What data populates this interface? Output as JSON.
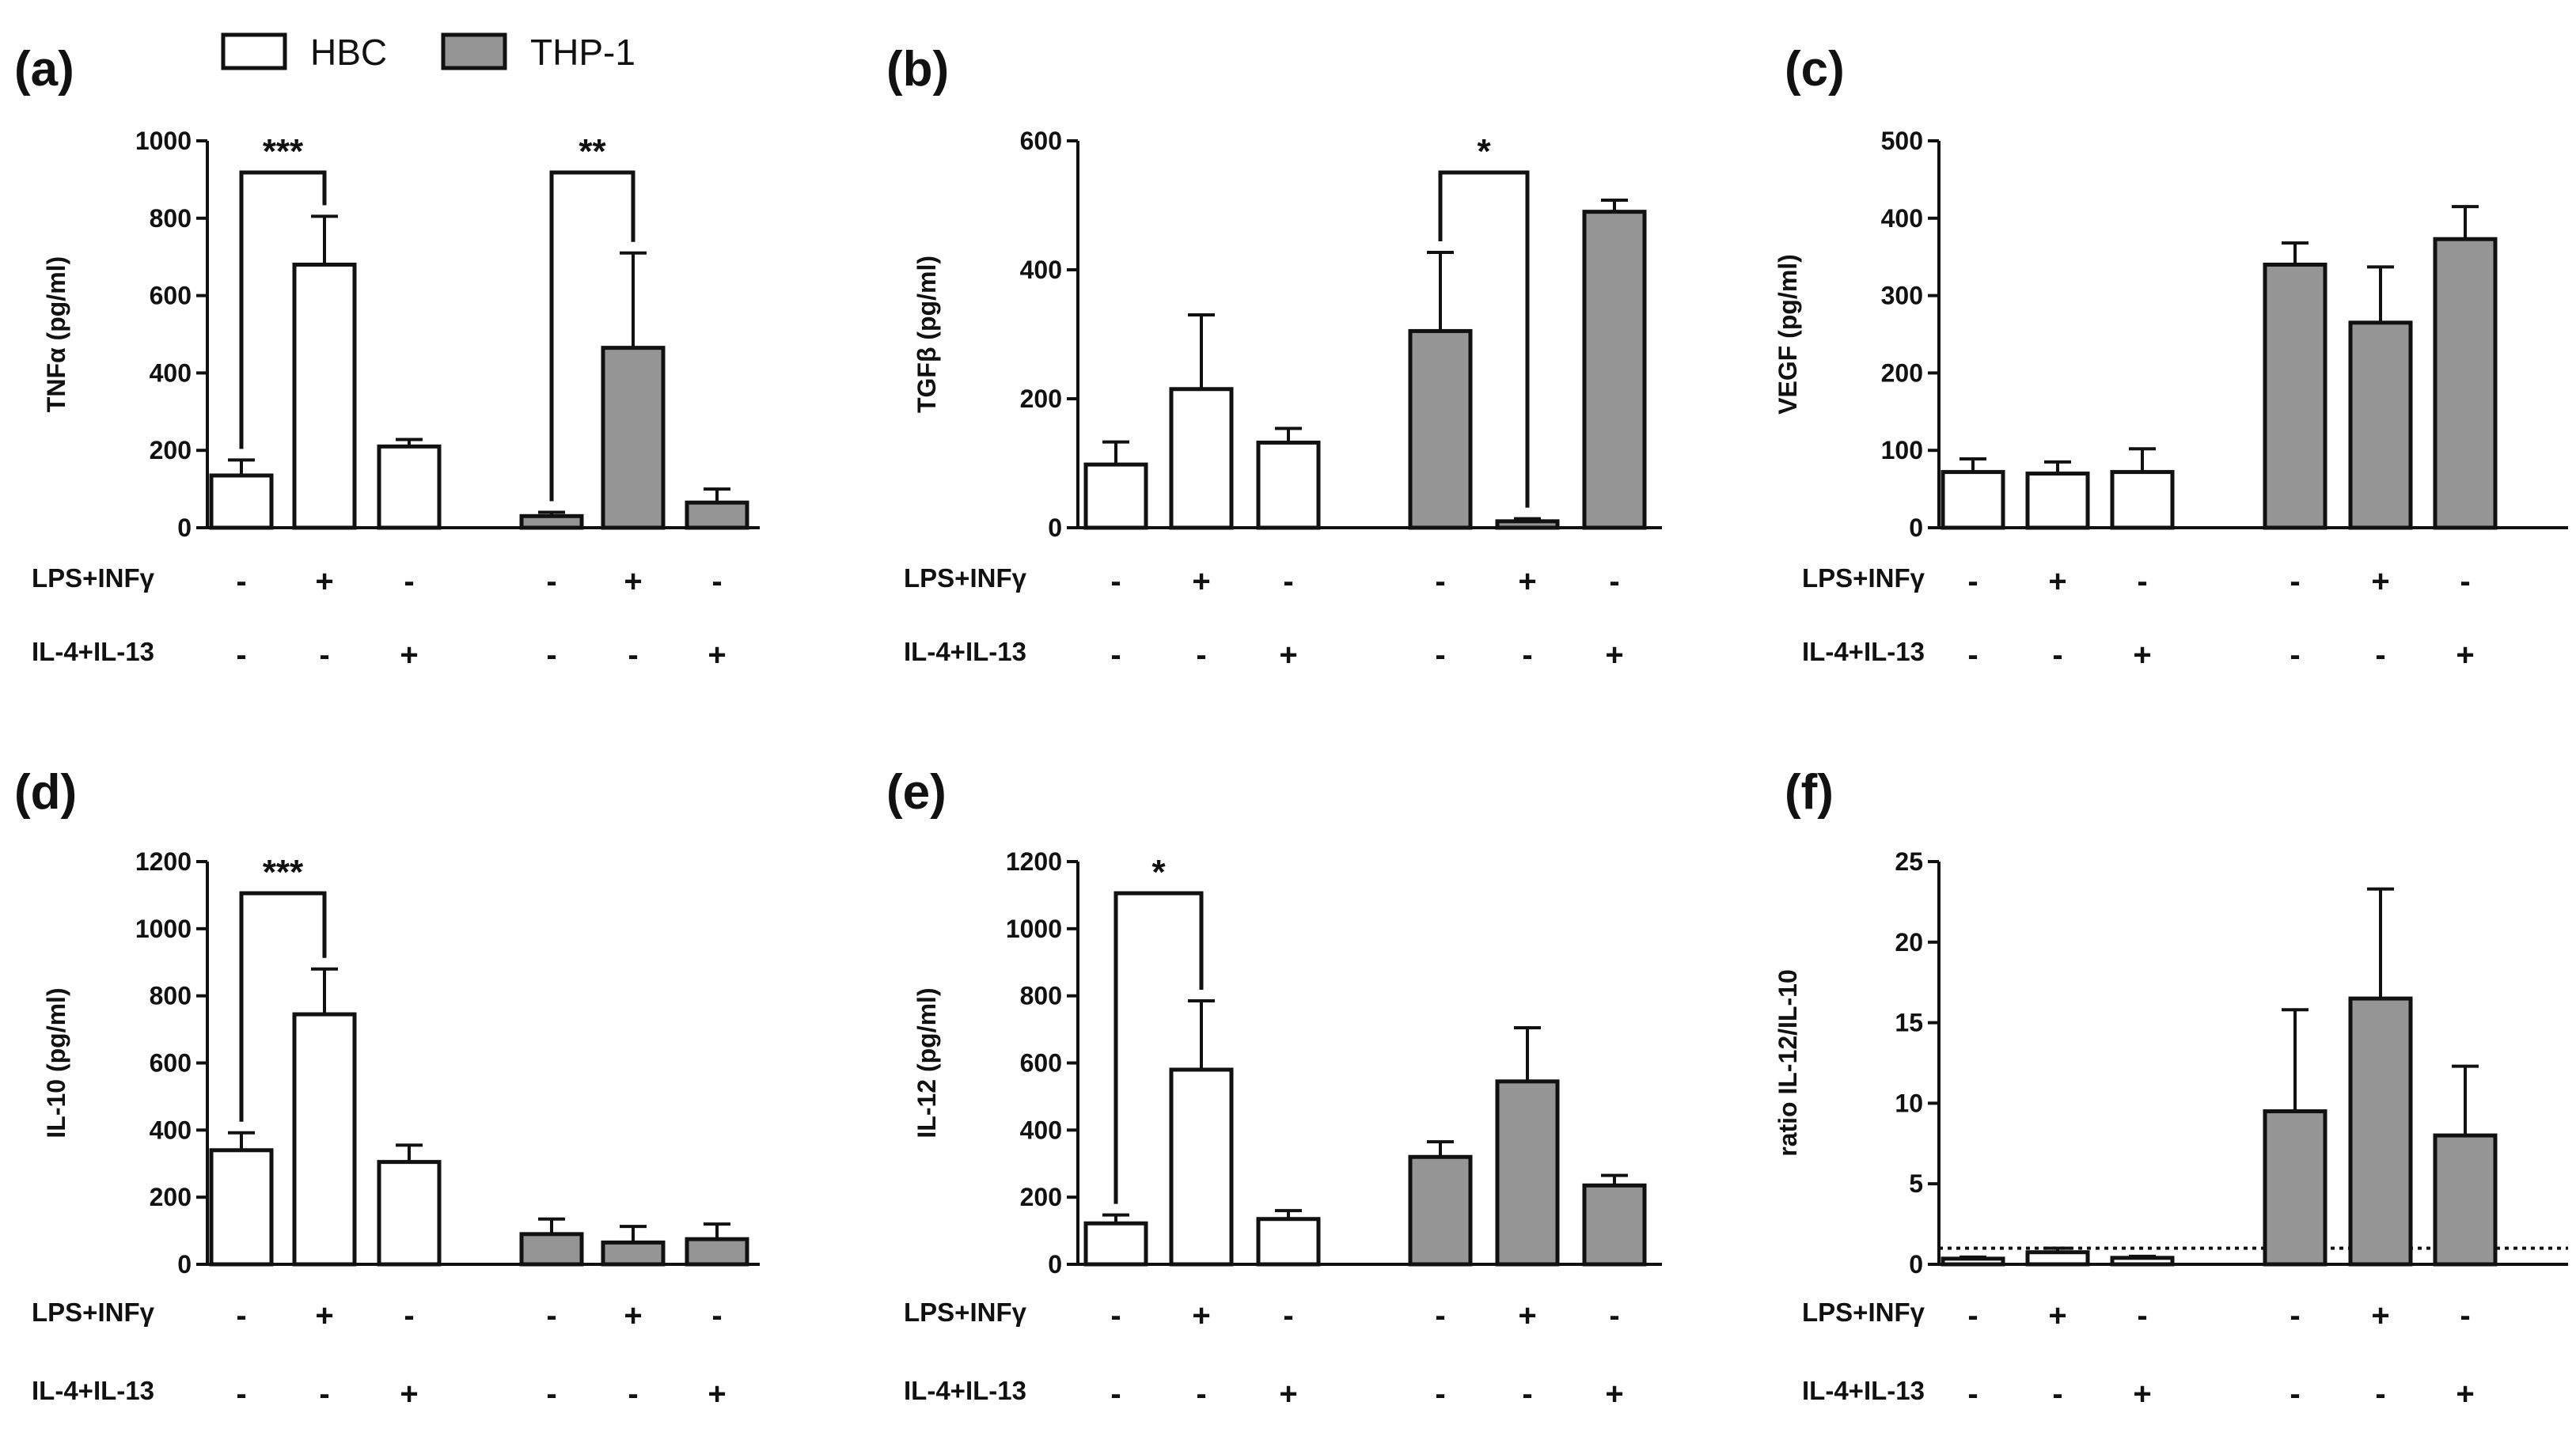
{
  "legend": [
    {
      "label": "HBC",
      "fill": "#ffffff"
    },
    {
      "label": "THP-1",
      "fill": "#959595"
    }
  ],
  "row_labels": [
    "LPS+INFγ",
    "IL-4+IL-13"
  ],
  "treatments": {
    "lps_inf": [
      "-",
      "+",
      "-",
      "-",
      "+",
      "-"
    ],
    "il4_il13": [
      "-",
      "-",
      "+",
      "-",
      "-",
      "+"
    ]
  },
  "colors": {
    "hbc_fill": "#ffffff",
    "thp1_fill": "#959595",
    "stroke": "#111111"
  },
  "chart_data": [
    {
      "panel": "(a)",
      "type": "bar",
      "ylabel": "TNFα (pg/ml)",
      "ylim": [
        0,
        1000
      ],
      "yticks": [
        "0",
        "200",
        "400",
        "600",
        "800",
        "1000"
      ],
      "series": [
        {
          "name": "HBC",
          "values": [
            135,
            680,
            210
          ],
          "errors": [
            40,
            125,
            18
          ]
        },
        {
          "name": "THP-1",
          "values": [
            30,
            465,
            65
          ],
          "errors": [
            10,
            245,
            35
          ]
        }
      ],
      "significance": [
        {
          "from": 0,
          "to": 1,
          "label": "***"
        },
        {
          "from": 3,
          "to": 4,
          "label": "**"
        }
      ],
      "reference_line": null
    },
    {
      "panel": "(b)",
      "type": "bar",
      "ylabel": "TGFβ (pg/ml)",
      "ylim": [
        0,
        600
      ],
      "yticks": [
        "0",
        "200",
        "400",
        "600"
      ],
      "series": [
        {
          "name": "HBC",
          "values": [
            98,
            215,
            132
          ],
          "errors": [
            35,
            115,
            22
          ]
        },
        {
          "name": "THP-1",
          "values": [
            305,
            10,
            490
          ],
          "errors": [
            122,
            4,
            18
          ]
        }
      ],
      "significance": [
        {
          "from": 3,
          "to": 4,
          "label": "*"
        }
      ],
      "reference_line": null
    },
    {
      "panel": "(c)",
      "type": "bar",
      "ylabel": "VEGF (pg/ml)",
      "ylim": [
        0,
        500
      ],
      "yticks": [
        "0",
        "100",
        "200",
        "300",
        "400",
        "500"
      ],
      "series": [
        {
          "name": "HBC",
          "values": [
            72,
            70,
            72
          ],
          "errors": [
            17,
            15,
            30
          ]
        },
        {
          "name": "THP-1",
          "values": [
            340,
            265,
            373
          ],
          "errors": [
            28,
            72,
            42
          ]
        }
      ],
      "significance": [],
      "reference_line": null
    },
    {
      "panel": "(d)",
      "type": "bar",
      "ylabel": "IL-10 (pg/ml)",
      "ylim": [
        0,
        1200
      ],
      "yticks": [
        "0",
        "200",
        "400",
        "600",
        "800",
        "1000",
        "1200"
      ],
      "series": [
        {
          "name": "HBC",
          "values": [
            340,
            745,
            305
          ],
          "errors": [
            52,
            135,
            50
          ]
        },
        {
          "name": "THP-1",
          "values": [
            90,
            65,
            75
          ],
          "errors": [
            45,
            48,
            45
          ]
        }
      ],
      "significance": [
        {
          "from": 0,
          "to": 1,
          "label": "***"
        }
      ],
      "reference_line": null
    },
    {
      "panel": "(e)",
      "type": "bar",
      "ylabel": "IL-12 (pg/ml)",
      "ylim": [
        0,
        1200
      ],
      "yticks": [
        "0",
        "200",
        "400",
        "600",
        "800",
        "1000",
        "1200"
      ],
      "series": [
        {
          "name": "HBC",
          "values": [
            122,
            580,
            135
          ],
          "errors": [
            25,
            205,
            25
          ]
        },
        {
          "name": "THP-1",
          "values": [
            320,
            545,
            235
          ],
          "errors": [
            45,
            160,
            30
          ]
        }
      ],
      "significance": [
        {
          "from": 0,
          "to": 1,
          "label": "*"
        }
      ],
      "reference_line": null
    },
    {
      "panel": "(f)",
      "type": "bar",
      "ylabel": "ratio IL-12/IL-10",
      "ylim": [
        0,
        25
      ],
      "yticks": [
        "0",
        "5",
        "10",
        "15",
        "20",
        "25"
      ],
      "series": [
        {
          "name": "HBC",
          "values": [
            0.35,
            0.75,
            0.4
          ],
          "errors": [
            0.1,
            0.25,
            0.1
          ]
        },
        {
          "name": "THP-1",
          "values": [
            9.5,
            16.5,
            8.0
          ],
          "errors": [
            6.3,
            6.8,
            4.3
          ]
        }
      ],
      "significance": [],
      "reference_line": 1
    }
  ]
}
